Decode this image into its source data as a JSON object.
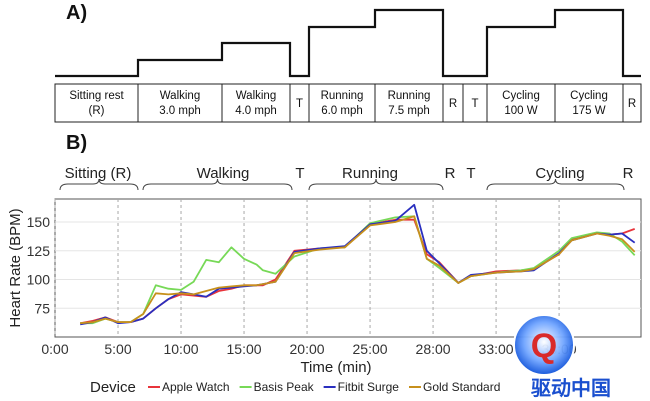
{
  "panel_a": {
    "label": "A)",
    "protocol_blocks": [
      {
        "label": "Sitting rest",
        "sub": "(R)",
        "level": 0
      },
      {
        "label": "Walking",
        "sub": "3.0 mph",
        "level": 1
      },
      {
        "label": "Walking",
        "sub": "4.0 mph",
        "level": 2
      },
      {
        "label": "T",
        "sub": "",
        "level": 0
      },
      {
        "label": "Running",
        "sub": "6.0 mph",
        "level": 3
      },
      {
        "label": "Running",
        "sub": "7.5 mph",
        "level": 4
      },
      {
        "label": "R",
        "sub": "",
        "level": 0
      },
      {
        "label": "T",
        "sub": "",
        "level": 0
      },
      {
        "label": "Cycling",
        "sub": "100 W",
        "level": 3
      },
      {
        "label": "Cycling",
        "sub": "175 W",
        "level": 4
      },
      {
        "label": "R",
        "sub": "",
        "level": 0
      }
    ]
  },
  "panel_b": {
    "label": "B)",
    "phase_labels": [
      "Sitting (R)",
      "Walking",
      "T",
      "Running",
      "R",
      "T",
      "Cycling",
      "R"
    ]
  },
  "chart_data": {
    "type": "line",
    "xlabel": "Time (min)",
    "ylabel": "Heart Rate (BPM)",
    "x_tick_labels": [
      "0:00",
      "5:00",
      "10:00",
      "15:00",
      "20:00",
      "25:00",
      "28:00",
      "33:00",
      "38:00"
    ],
    "y_ticks": [
      75,
      100,
      125,
      150
    ],
    "ylim": [
      50,
      170
    ],
    "legend_title": "Device",
    "legend_position": "bottom",
    "grid": true,
    "series": [
      {
        "name": "Apple Watch",
        "color": "#e8343b",
        "points": [
          [
            2,
            62
          ],
          [
            3,
            64
          ],
          [
            4,
            67
          ],
          [
            5,
            63
          ],
          [
            6,
            63
          ],
          [
            7,
            66
          ],
          [
            8,
            75
          ],
          [
            9,
            83
          ],
          [
            10,
            87
          ],
          [
            11,
            86
          ],
          [
            12,
            85
          ],
          [
            13,
            90
          ],
          [
            14,
            92
          ],
          [
            15,
            95
          ],
          [
            16,
            95
          ],
          [
            16.5,
            95
          ],
          [
            17.5,
            100
          ],
          [
            19,
            125
          ],
          [
            21,
            127
          ],
          [
            23,
            128
          ],
          [
            25,
            148
          ],
          [
            27,
            152
          ],
          [
            28.5,
            152
          ],
          [
            29.5,
            122
          ],
          [
            30.5,
            115
          ],
          [
            32,
            97
          ],
          [
            33,
            103
          ],
          [
            35,
            107
          ],
          [
            37,
            108
          ],
          [
            38,
            109
          ],
          [
            40,
            122
          ],
          [
            41,
            135
          ],
          [
            43,
            140
          ],
          [
            44,
            139
          ],
          [
            45,
            140
          ],
          [
            46,
            144
          ]
        ]
      },
      {
        "name": "Basis Peak",
        "color": "#77d957",
        "points": [
          [
            2,
            62
          ],
          [
            3,
            62
          ],
          [
            4,
            66
          ],
          [
            5,
            63
          ],
          [
            6,
            63
          ],
          [
            7,
            70
          ],
          [
            8,
            95
          ],
          [
            9,
            92
          ],
          [
            10,
            91
          ],
          [
            11,
            98
          ],
          [
            12,
            117
          ],
          [
            13,
            115
          ],
          [
            14,
            128
          ],
          [
            15,
            118
          ],
          [
            16,
            113
          ],
          [
            16.5,
            108
          ],
          [
            17.5,
            105
          ],
          [
            19,
            120
          ],
          [
            21,
            127
          ],
          [
            23,
            128
          ],
          [
            25,
            149
          ],
          [
            27,
            154
          ],
          [
            28.5,
            155
          ],
          [
            29.5,
            118
          ],
          [
            30.5,
            110
          ],
          [
            32,
            97
          ],
          [
            33,
            103
          ],
          [
            35,
            106
          ],
          [
            37,
            108
          ],
          [
            38,
            110
          ],
          [
            40,
            125
          ],
          [
            41,
            136
          ],
          [
            43,
            141
          ],
          [
            44,
            140
          ],
          [
            45,
            133
          ],
          [
            46,
            121
          ]
        ]
      },
      {
        "name": "Fitbit Surge",
        "color": "#2a2fbf",
        "points": [
          [
            2,
            61
          ],
          [
            3,
            63
          ],
          [
            4,
            67
          ],
          [
            5,
            62
          ],
          [
            6,
            63
          ],
          [
            7,
            66
          ],
          [
            8,
            75
          ],
          [
            9,
            83
          ],
          [
            10,
            89
          ],
          [
            11,
            87
          ],
          [
            12,
            85
          ],
          [
            13,
            92
          ],
          [
            14,
            93
          ],
          [
            15,
            94
          ],
          [
            16,
            95
          ],
          [
            16.5,
            96
          ],
          [
            17.5,
            98
          ],
          [
            19,
            124
          ],
          [
            21,
            127
          ],
          [
            23,
            129
          ],
          [
            25,
            148
          ],
          [
            27,
            151
          ],
          [
            28.5,
            165
          ],
          [
            29.5,
            125
          ],
          [
            30.5,
            114
          ],
          [
            32,
            97
          ],
          [
            33,
            104
          ],
          [
            35,
            106
          ],
          [
            37,
            107
          ],
          [
            38,
            108
          ],
          [
            40,
            123
          ],
          [
            41,
            134
          ],
          [
            43,
            140
          ],
          [
            44,
            139
          ],
          [
            45,
            140
          ],
          [
            46,
            132
          ]
        ]
      },
      {
        "name": "Gold Standard",
        "color": "#c7901c",
        "points": [
          [
            2,
            62
          ],
          [
            3,
            63
          ],
          [
            4,
            66
          ],
          [
            5,
            63
          ],
          [
            6,
            63
          ],
          [
            7,
            70
          ],
          [
            8,
            88
          ],
          [
            9,
            87
          ],
          [
            10,
            88
          ],
          [
            11,
            87
          ],
          [
            12,
            90
          ],
          [
            13,
            93
          ],
          [
            14,
            94
          ],
          [
            15,
            95
          ],
          [
            16,
            95
          ],
          [
            16.5,
            96
          ],
          [
            17.5,
            98
          ],
          [
            19,
            123
          ],
          [
            21,
            126
          ],
          [
            23,
            128
          ],
          [
            25,
            147
          ],
          [
            27,
            150
          ],
          [
            28.5,
            155
          ],
          [
            29.5,
            118
          ],
          [
            30.5,
            112
          ],
          [
            32,
            97
          ],
          [
            33,
            103
          ],
          [
            35,
            106
          ],
          [
            37,
            107
          ],
          [
            38,
            109
          ],
          [
            40,
            122
          ],
          [
            41,
            134
          ],
          [
            43,
            140
          ],
          [
            44,
            138
          ],
          [
            45,
            135
          ],
          [
            46,
            124
          ]
        ]
      }
    ],
    "x_data_range": [
      0,
      46.5
    ],
    "x_tick_values": [
      0,
      5,
      10,
      15,
      20,
      25,
      30,
      35,
      40
    ]
  },
  "watermark": {
    "text": "驱动中国"
  }
}
